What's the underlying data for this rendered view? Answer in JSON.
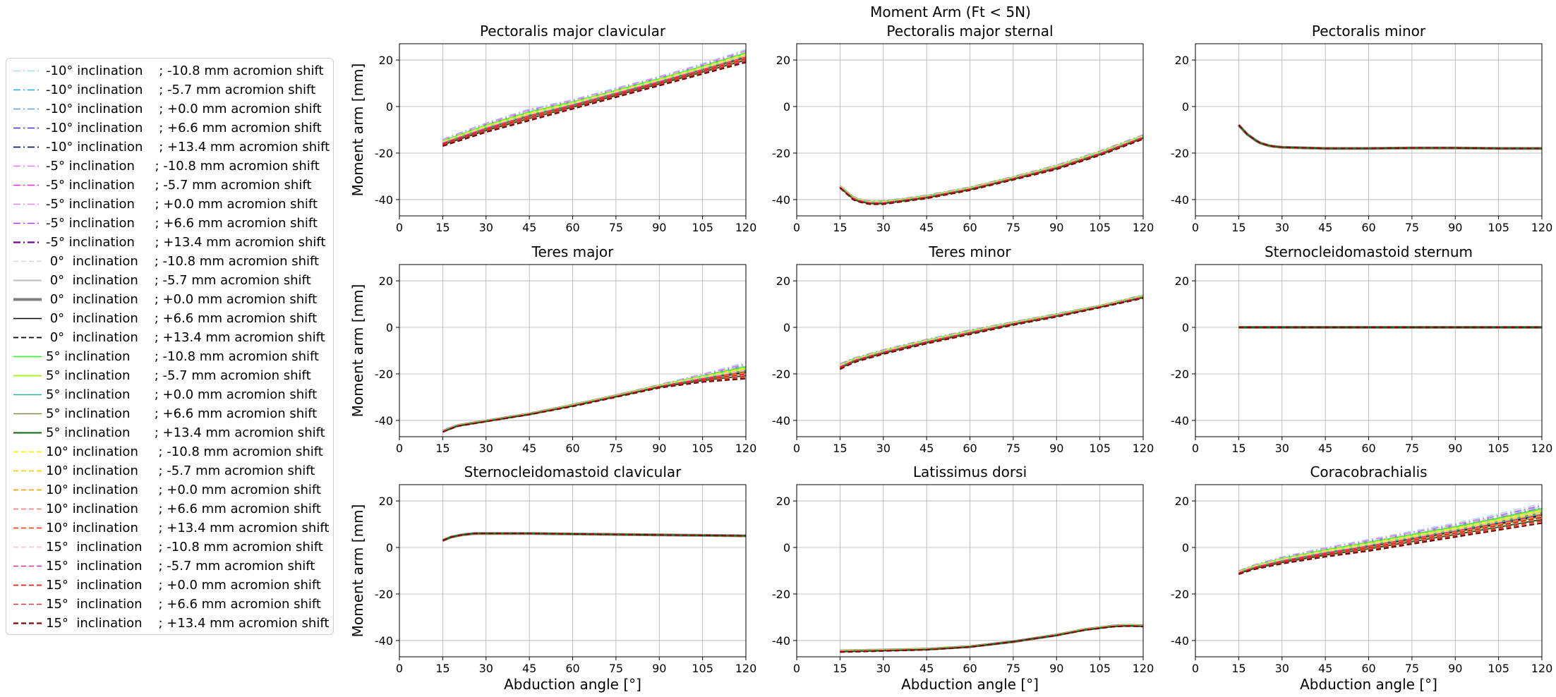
{
  "figure": {
    "suptitle": "Moment Arm (Ft < 5N)"
  },
  "legend": {
    "entries": [
      {
        "inclination": "-10°",
        "shift": "-10.8",
        "label": "-10° inclination    ; -10.8 mm acromion shift",
        "color": "#9fd7e8",
        "dash": "dashdot",
        "width": 1.3
      },
      {
        "inclination": "-10°",
        "shift": "-5.7",
        "label": "-10° inclination    ; -5.7 mm acromion shift",
        "color": "#2aa7e6",
        "dash": "dashdot",
        "width": 1.6
      },
      {
        "inclination": "-10°",
        "shift": "+0.0",
        "label": "-10° inclination    ; +0.0 mm acromion shift",
        "color": "#6b97d9",
        "dash": "dashdot",
        "width": 1.6
      },
      {
        "inclination": "-10°",
        "shift": "+6.6",
        "label": "-10° inclination    ; +6.6 mm acromion shift",
        "color": "#3b31d6",
        "dash": "dashdot",
        "width": 1.6
      },
      {
        "inclination": "-10°",
        "shift": "+13.4",
        "label": "-10° inclination    ; +13.4 mm acromion shift",
        "color": "#0c1e6b",
        "dash": "dashdot",
        "width": 1.8
      },
      {
        "inclination": "-5°",
        "shift": "-10.8",
        "label": "-5° inclination     ; -10.8 mm acromion shift",
        "color": "#f07cf0",
        "dash": "dashdot",
        "width": 1.6
      },
      {
        "inclination": "-5°",
        "shift": "-5.7",
        "label": "-5° inclination     ; -5.7 mm acromion shift",
        "color": "#f025f0",
        "dash": "dashdot",
        "width": 1.6
      },
      {
        "inclination": "-5°",
        "shift": "+0.0",
        "label": "-5° inclination     ; +0.0 mm acromion shift",
        "color": "#d98ee8",
        "dash": "dashdot",
        "width": 1.6
      },
      {
        "inclination": "-5°",
        "shift": "+6.6",
        "label": "-5° inclination     ; +6.6 mm acromion shift",
        "color": "#b13be6",
        "dash": "dashdot",
        "width": 1.6
      },
      {
        "inclination": "-5°",
        "shift": "+13.4",
        "label": "-5° inclination     ; +13.4 mm acromion shift",
        "color": "#6a0a8c",
        "dash": "dashdot",
        "width": 2.2
      },
      {
        "inclination": "0°",
        "shift": "-10.8",
        "label": " 0°  inclination    ; -10.8 mm acromion shift",
        "color": "#d6d6d6",
        "dash": "dashed",
        "width": 1.4
      },
      {
        "inclination": "0°",
        "shift": "-5.7",
        "label": " 0°  inclination    ; -5.7 mm acromion shift",
        "color": "#c2c2c2",
        "dash": "solid",
        "width": 2.2
      },
      {
        "inclination": "0°",
        "shift": "+0.0",
        "label": " 0°  inclination    ; +0.0 mm acromion shift",
        "color": "#808080",
        "dash": "solid",
        "width": 4.0
      },
      {
        "inclination": "0°",
        "shift": "+6.6",
        "label": " 0°  inclination    ; +6.6 mm acromion shift",
        "color": "#000000",
        "dash": "solid",
        "width": 1.6
      },
      {
        "inclination": "0°",
        "shift": "+13.4",
        "label": " 0°  inclination    ; +13.4 mm acromion shift",
        "color": "#000000",
        "dash": "dashed",
        "width": 1.8
      },
      {
        "inclination": "5°",
        "shift": "-10.8",
        "label": "5° inclination      ; -10.8 mm acromion shift",
        "color": "#3ef03e",
        "dash": "solid",
        "width": 1.8
      },
      {
        "inclination": "5°",
        "shift": "-5.7",
        "label": "5° inclination      ; -5.7 mm acromion shift",
        "color": "#b4f53a",
        "dash": "solid",
        "width": 2.2
      },
      {
        "inclination": "5°",
        "shift": "+0.0",
        "label": "5° inclination      ; +0.0 mm acromion shift",
        "color": "#2eb39a",
        "dash": "solid",
        "width": 1.6
      },
      {
        "inclination": "5°",
        "shift": "+6.6",
        "label": "5° inclination      ; +6.6 mm acromion shift",
        "color": "#8a8a4a",
        "dash": "solid",
        "width": 1.6
      },
      {
        "inclination": "5°",
        "shift": "+13.4",
        "label": "5° inclination      ; +13.4 mm acromion shift",
        "color": "#0a6a0a",
        "dash": "solid",
        "width": 2.0
      },
      {
        "inclination": "10°",
        "shift": "-10.8",
        "label": "10° inclination     ; -10.8 mm acromion shift",
        "color": "#f5f51a",
        "dash": "dashed",
        "width": 2.0
      },
      {
        "inclination": "10°",
        "shift": "-5.7",
        "label": "10° inclination     ; -5.7 mm acromion shift",
        "color": "#ecd21a",
        "dash": "dashed",
        "width": 1.8
      },
      {
        "inclination": "10°",
        "shift": "+0.0",
        "label": "10° inclination     ; +0.0 mm acromion shift",
        "color": "#f5a51a",
        "dash": "dashed",
        "width": 1.8
      },
      {
        "inclination": "10°",
        "shift": "+6.6",
        "label": "10° inclination     ; +6.6 mm acromion shift",
        "color": "#f28a8a",
        "dash": "dashed",
        "width": 1.8
      },
      {
        "inclination": "10°",
        "shift": "+13.4",
        "label": "10° inclination     ; +13.4 mm acromion shift",
        "color": "#f04a1a",
        "dash": "dashed",
        "width": 1.8
      },
      {
        "inclination": "15°",
        "shift": "-10.8",
        "label": "15°  inclination    ; -10.8 mm acromion shift",
        "color": "#f5c0d8",
        "dash": "dashed",
        "width": 1.6
      },
      {
        "inclination": "15°",
        "shift": "-5.7",
        "label": "15°  inclination    ; -5.7 mm acromion shift",
        "color": "#ee2a8a",
        "dash": "dashed",
        "width": 1.6
      },
      {
        "inclination": "15°",
        "shift": "+0.0",
        "label": "15°  inclination    ; +0.0 mm acromion shift",
        "color": "#e8201a",
        "dash": "dashed",
        "width": 1.8
      },
      {
        "inclination": "15°",
        "shift": "+6.6",
        "label": "15°  inclination    ; +6.6 mm acromion shift",
        "color": "#c43a4a",
        "dash": "dashed",
        "width": 1.6
      },
      {
        "inclination": "15°",
        "shift": "+13.4",
        "label": "15°  inclination    ; +13.4 mm acromion shift",
        "color": "#7a0a0a",
        "dash": "dashed",
        "width": 2.2
      }
    ]
  },
  "chart_data": [
    {
      "type": "line",
      "title": "Pectoralis major clavicular",
      "xlabel": "",
      "ylabel": "Moment arm [mm]",
      "xlim": [
        0,
        120
      ],
      "ylim": [
        -47,
        27
      ],
      "xticks": [
        0,
        15,
        30,
        45,
        60,
        75,
        90,
        105,
        120
      ],
      "yticks": [
        -40,
        -20,
        0,
        20
      ],
      "grid": true,
      "x": [
        15,
        30,
        45,
        60,
        75,
        90,
        105,
        120
      ],
      "series": [
        {
          "values": [
            -14,
            -7,
            -1,
            3,
            8,
            13,
            18.5,
            24.5
          ]
        },
        {
          "values": [
            -17,
            -11,
            -6,
            -1,
            4,
            9,
            14,
            19
          ]
        }
      ]
    },
    {
      "type": "line",
      "title": "Pectoralis major sternal",
      "xlabel": "",
      "ylabel": "",
      "xlim": [
        0,
        120
      ],
      "ylim": [
        -47,
        27
      ],
      "xticks": [
        0,
        15,
        30,
        45,
        60,
        75,
        90,
        105,
        120
      ],
      "yticks": [
        -40,
        -20,
        0,
        20
      ],
      "grid": true,
      "x": [
        15,
        20,
        25,
        30,
        45,
        60,
        75,
        90,
        105,
        120
      ],
      "series": [
        {
          "values": [
            -34,
            -39,
            -40.5,
            -40.5,
            -38,
            -34.5,
            -30,
            -25,
            -19,
            -12
          ]
        },
        {
          "values": [
            -35,
            -40.5,
            -42,
            -42,
            -39.5,
            -36,
            -31.5,
            -27,
            -21,
            -14
          ]
        }
      ]
    },
    {
      "type": "line",
      "title": "Pectoralis minor",
      "xlabel": "",
      "ylabel": "",
      "xlim": [
        0,
        120
      ],
      "ylim": [
        -47,
        27
      ],
      "xticks": [
        0,
        15,
        30,
        45,
        60,
        75,
        90,
        105,
        120
      ],
      "yticks": [
        -40,
        -20,
        0,
        20
      ],
      "grid": true,
      "x": [
        15,
        18,
        22,
        26,
        30,
        45,
        60,
        75,
        90,
        105,
        120
      ],
      "series": [
        {
          "values": [
            -8,
            -12,
            -15.5,
            -17,
            -17.5,
            -18,
            -18,
            -17.8,
            -17.8,
            -18,
            -18
          ]
        }
      ]
    },
    {
      "type": "line",
      "title": "Teres major",
      "xlabel": "",
      "ylabel": "Moment arm [mm]",
      "xlim": [
        0,
        120
      ],
      "ylim": [
        -47,
        27
      ],
      "xticks": [
        0,
        15,
        30,
        45,
        60,
        75,
        90,
        105,
        120
      ],
      "yticks": [
        -40,
        -20,
        0,
        20
      ],
      "grid": true,
      "x": [
        15,
        20,
        30,
        45,
        60,
        75,
        90,
        105,
        120
      ],
      "series": [
        {
          "values": [
            -44.5,
            -42,
            -40,
            -37,
            -33,
            -29,
            -24.5,
            -20,
            -15
          ]
        },
        {
          "values": [
            -45,
            -42.5,
            -40.5,
            -37.5,
            -34,
            -30,
            -26,
            -23.5,
            -22
          ]
        }
      ]
    },
    {
      "type": "line",
      "title": "Teres minor",
      "xlabel": "",
      "ylabel": "",
      "xlim": [
        0,
        120
      ],
      "ylim": [
        -47,
        27
      ],
      "xticks": [
        0,
        15,
        30,
        45,
        60,
        75,
        90,
        105,
        120
      ],
      "yticks": [
        -40,
        -20,
        0,
        20
      ],
      "grid": true,
      "x": [
        15,
        20,
        30,
        45,
        60,
        75,
        90,
        105,
        120
      ],
      "series": [
        {
          "values": [
            -15.5,
            -13,
            -9.5,
            -5,
            -1,
            2.5,
            6,
            9.5,
            14
          ]
        },
        {
          "values": [
            -18,
            -15,
            -11.5,
            -7,
            -3,
            1,
            4.5,
            8.5,
            12.5
          ]
        }
      ]
    },
    {
      "type": "line",
      "title": "Sternocleidomastoid sternum",
      "xlabel": "",
      "ylabel": "",
      "xlim": [
        0,
        120
      ],
      "ylim": [
        -47,
        27
      ],
      "xticks": [
        0,
        15,
        30,
        45,
        60,
        75,
        90,
        105,
        120
      ],
      "yticks": [
        -40,
        -20,
        0,
        20
      ],
      "grid": true,
      "x": [
        15,
        120
      ],
      "series": [
        {
          "values": [
            0,
            0
          ]
        }
      ]
    },
    {
      "type": "line",
      "title": "Sternocleidomastoid clavicular",
      "xlabel": "Abduction angle [°]",
      "ylabel": "Moment arm [mm]",
      "xlim": [
        0,
        120
      ],
      "ylim": [
        -47,
        27
      ],
      "xticks": [
        0,
        15,
        30,
        45,
        60,
        75,
        90,
        105,
        120
      ],
      "yticks": [
        -40,
        -20,
        0,
        20
      ],
      "grid": true,
      "x": [
        15,
        18,
        22,
        26,
        30,
        45,
        60,
        75,
        90,
        105,
        120
      ],
      "series": [
        {
          "values": [
            3,
            4.5,
            5.5,
            6,
            6,
            6,
            5.8,
            5.6,
            5.4,
            5.2,
            5
          ]
        }
      ]
    },
    {
      "type": "line",
      "title": "Latissimus dorsi",
      "xlabel": "Abduction angle [°]",
      "ylabel": "",
      "xlim": [
        0,
        120
      ],
      "ylim": [
        -47,
        27
      ],
      "xticks": [
        0,
        15,
        30,
        45,
        60,
        75,
        90,
        105,
        120
      ],
      "yticks": [
        -40,
        -20,
        0,
        20
      ],
      "grid": true,
      "x": [
        15,
        30,
        45,
        60,
        75,
        90,
        100,
        110,
        115,
        120
      ],
      "series": [
        {
          "values": [
            -44,
            -43.8,
            -43.5,
            -42.5,
            -40.5,
            -37.5,
            -35,
            -33.5,
            -33.2,
            -33.5
          ]
        },
        {
          "values": [
            -45,
            -44.5,
            -44,
            -42.8,
            -40.5,
            -37.8,
            -35.5,
            -34,
            -33.8,
            -34
          ]
        }
      ]
    },
    {
      "type": "line",
      "title": "Coracobrachialis",
      "xlabel": "Abduction angle [°]",
      "ylabel": "",
      "xlim": [
        0,
        120
      ],
      "ylim": [
        -47,
        27
      ],
      "xticks": [
        0,
        15,
        30,
        45,
        60,
        75,
        90,
        105,
        120
      ],
      "yticks": [
        -40,
        -20,
        0,
        20
      ],
      "grid": true,
      "x": [
        15,
        20,
        30,
        45,
        60,
        75,
        90,
        105,
        120
      ],
      "series": [
        {
          "values": [
            -10,
            -7.5,
            -4,
            0,
            3.5,
            7,
            10.5,
            14.5,
            19
          ]
        },
        {
          "values": [
            -11.5,
            -9.5,
            -7,
            -4,
            -1.5,
            1.5,
            4.5,
            7.5,
            10.5
          ]
        }
      ]
    }
  ]
}
